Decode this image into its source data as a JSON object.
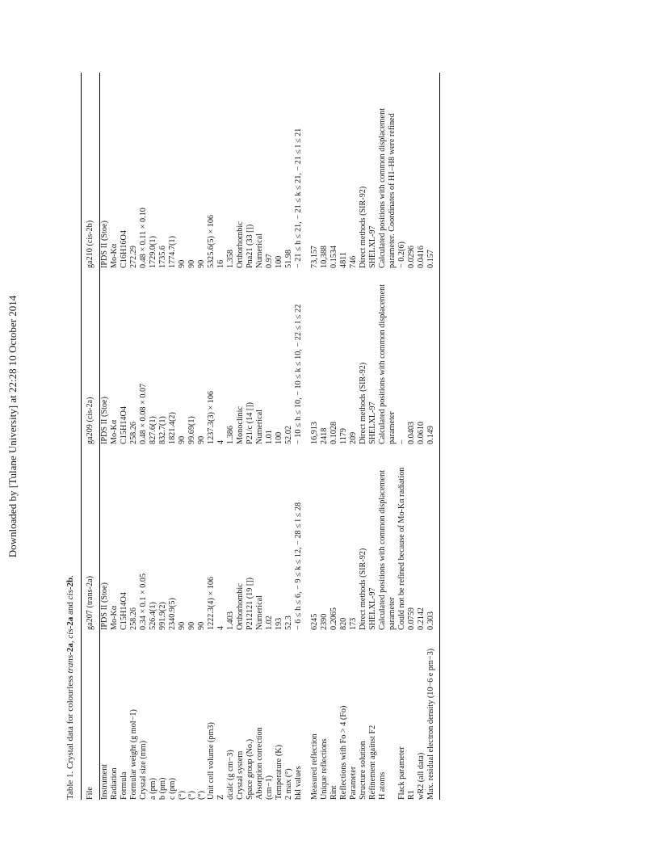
{
  "banner": "Downloaded by [Tulane University] at 22:28 10 October 2014",
  "caption": {
    "prefix": "Table 1.   Crystal data for colourless ",
    "trans": "trans",
    "c1": "-2a",
    "sep1": ", ",
    "cis1": "cis",
    "c2": "-2a",
    "sep2": " and ",
    "cis2": "cis",
    "c3": "-2b",
    "end": "."
  },
  "table": {
    "headers": [
      "File",
      "ga207 (trans-2a)",
      "ga209 (cis-2a)",
      "ga210 (cis-2b)"
    ],
    "rows": [
      {
        "label": "Instrument",
        "v": [
          "IPDS II (Stoe)",
          "IPDS II (Stoe)",
          "IPDS II (Stoe)"
        ]
      },
      {
        "label": "Radiation",
        "v": [
          "Mo-Kα",
          "Mo-Kα",
          "Mo-Kα"
        ]
      },
      {
        "label": "Formula",
        "v": [
          "C15H14O4",
          "C15H14O4",
          "C16H16O4"
        ]
      },
      {
        "label": "Formular weight (g mol−1)",
        "v": [
          "258.26",
          "258.26",
          "272.29"
        ]
      },
      {
        "label": "Crystal size (mm)",
        "v": [
          "0.34 × 0.1 × 0.05",
          "0.48 × 0.08 × 0.07",
          "0.48 × 0.11 × 0.10"
        ]
      },
      {
        "label": "a (pm)",
        "v": [
          "526.4(1)",
          "827.6(1)",
          "1729.0(1)"
        ]
      },
      {
        "label": "b (pm)",
        "v": [
          "991.9(2)",
          "832.7(1)",
          "1735.6"
        ]
      },
      {
        "label": "c (pm)",
        "v": [
          "2340.9(5)",
          "1821.4(2)",
          "1774.7(1)"
        ]
      },
      {
        "label": "(°)",
        "v": [
          "90",
          "90",
          "90"
        ]
      },
      {
        "label": "(°)",
        "v": [
          "90",
          "99.69(1)",
          "90"
        ]
      },
      {
        "label": "(°)",
        "v": [
          "90",
          "90",
          "90"
        ]
      },
      {
        "label": "Unit cell volume (pm3)",
        "v": [
          "1222.3(4) × 106",
          "1237.3(3) × 106",
          "5325.6(5) × 106"
        ]
      },
      {
        "label": "Z",
        "v": [
          "4",
          "4",
          "16"
        ]
      },
      {
        "label": "dcalc (g cm−3)",
        "v": [
          "1.403",
          "1.386",
          "1.358"
        ]
      },
      {
        "label": "Crystal system",
        "v": [
          "Orthorhombic",
          "Monoclinic",
          "Orthorhombic"
        ]
      },
      {
        "label": "Space group (No.)",
        "v": [
          "P212121 (19 [])",
          "P21/c (14 [])",
          "Pna21 (33 [])"
        ]
      },
      {
        "label": "Absorption correction",
        "v": [
          "Numerical",
          "Numerical",
          "Numerical"
        ]
      },
      {
        "label": "(cm−1)",
        "v": [
          "1.02",
          "1.01",
          "0.97"
        ]
      },
      {
        "label": "Temperature (K)",
        "v": [
          "193",
          "100",
          "100"
        ]
      },
      {
        "label": "2 max (°)",
        "v": [
          "52.3",
          "52.02",
          "51.98"
        ]
      },
      {
        "label": "hkl values",
        "v": [
          "− 6 ≤ h ≤ 6, − 9 ≤ k ≤ 12, − 28 ≤ l ≤ 28",
          "− 10 ≤ h ≤ 10,      − 10 ≤ k ≤ 10, − 22 ≤ l ≤ 22",
          "− 21 ≤ h ≤ 21,      − 21 ≤ k ≤ 21, − 21 ≤ l ≤ 21"
        ]
      },
      {
        "label": "Measured reflection",
        "v": [
          "6245",
          "16,913",
          "73,157"
        ],
        "gap": true
      },
      {
        "label": "Unique reflections",
        "v": [
          "2390",
          "2418",
          "10,388"
        ]
      },
      {
        "label": "Rint",
        "v": [
          "0.2065",
          "0.1028",
          "0.1534"
        ]
      },
      {
        "label": "Reflections with Fo > 4 (Fo)",
        "v": [
          "820",
          "1179",
          "4811"
        ]
      },
      {
        "label": "Parameter",
        "v": [
          "173",
          "209",
          "746"
        ]
      },
      {
        "label": "Structure solution",
        "v": [
          "Direct methods (SIR-92)",
          "Direct methods (SIR-92)",
          "Direct methods (SIR-92)"
        ]
      },
      {
        "label": "Refinement against F2",
        "v": [
          "SHELXL-97",
          "SHELXL-97",
          "SHELXL-97"
        ]
      },
      {
        "label": "H atoms",
        "v": [
          "Calculated positions with common displacement parameter",
          "Calculated positions with common displacement parameter",
          "Calculated positions with common displacement parameter. Coordinates of H1–H8 were refined"
        ]
      },
      {
        "label": "Flack parameter",
        "v": [
          "Could not be refined because of Mo-Kα radiation",
          "–",
          "− 0.2(6)"
        ]
      },
      {
        "label": "R1",
        "v": [
          "0.0759",
          "0.0403",
          "0.0296"
        ]
      },
      {
        "label": "wR2 (all data)",
        "v": [
          "0.2142",
          "0.0610",
          "0.0416"
        ]
      },
      {
        "label": "Max. residual electron density (10−6 e pm−3)",
        "v": [
          "0.303",
          "0.149",
          "0.157"
        ]
      }
    ]
  }
}
